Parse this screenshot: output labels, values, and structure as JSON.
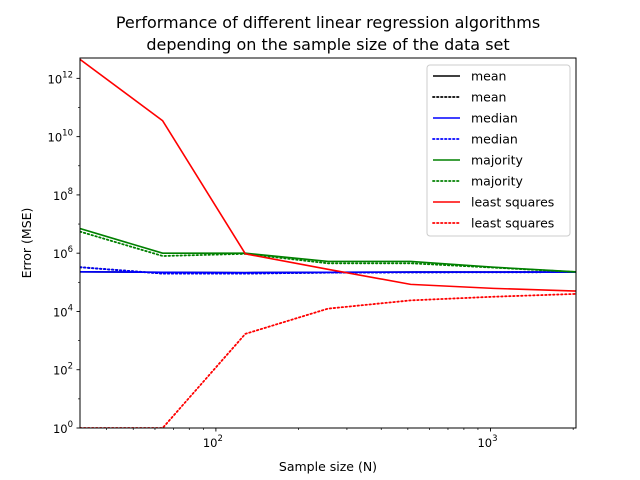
{
  "chart_data": {
    "type": "line",
    "title_lines": [
      "Performance of different linear regression algorithms",
      "depending on the sample size of the data set"
    ],
    "xlabel": "Sample size (N)",
    "ylabel": "Error (MSE)",
    "xscale": "log",
    "yscale": "log",
    "xlim": [
      32,
      2048
    ],
    "ylim": [
      1,
      5000000000000.0
    ],
    "x_tick_labels": [
      {
        "value": 100,
        "base": "10",
        "exp": "2"
      },
      {
        "value": 1000,
        "base": "10",
        "exp": "3"
      }
    ],
    "y_tick_labels": [
      {
        "value": 1,
        "base": "10",
        "exp": "0"
      },
      {
        "value": 100,
        "base": "10",
        "exp": "2"
      },
      {
        "value": 10000,
        "base": "10",
        "exp": "4"
      },
      {
        "value": 1000000,
        "base": "10",
        "exp": "6"
      },
      {
        "value": 100000000,
        "base": "10",
        "exp": "8"
      },
      {
        "value": 10000000000,
        "base": "10",
        "exp": "10"
      },
      {
        "value": 1000000000000,
        "base": "10",
        "exp": "12"
      }
    ],
    "legend_position": "top-right",
    "x": [
      32,
      64,
      128,
      256,
      512,
      1024,
      2048
    ],
    "series": [
      {
        "name": "mean",
        "color": "#000000",
        "style": "solid",
        "values": [
          230000,
          220000,
          215000,
          220000,
          225000,
          225000,
          225000
        ]
      },
      {
        "name": "mean",
        "color": "#000000",
        "style": "dotted",
        "values": [
          330000,
          200000,
          200000,
          215000,
          220000,
          222000,
          224000
        ]
      },
      {
        "name": "median",
        "color": "#0000ff",
        "style": "solid",
        "values": [
          230000,
          220000,
          215000,
          220000,
          225000,
          225000,
          225000
        ]
      },
      {
        "name": "median",
        "color": "#0000ff",
        "style": "dotted",
        "values": [
          330000,
          200000,
          200000,
          215000,
          220000,
          222000,
          224000
        ]
      },
      {
        "name": "majority",
        "color": "#008000",
        "style": "solid",
        "values": [
          7000000,
          1000000,
          1000000,
          520000,
          520000,
          330000,
          230000
        ]
      },
      {
        "name": "majority",
        "color": "#008000",
        "style": "dotted",
        "values": [
          5500000,
          800000,
          950000,
          450000,
          450000,
          320000,
          225000
        ]
      },
      {
        "name": "least squares",
        "color": "#ff0000",
        "style": "solid",
        "values": [
          4500000000000,
          35000000000,
          950000,
          280000,
          85000,
          62000,
          50000
        ]
      },
      {
        "name": "least squares",
        "color": "#ff0000",
        "style": "dotted",
        "values": [
          1,
          1,
          1700,
          12500,
          24000,
          32000,
          40000
        ]
      }
    ]
  }
}
